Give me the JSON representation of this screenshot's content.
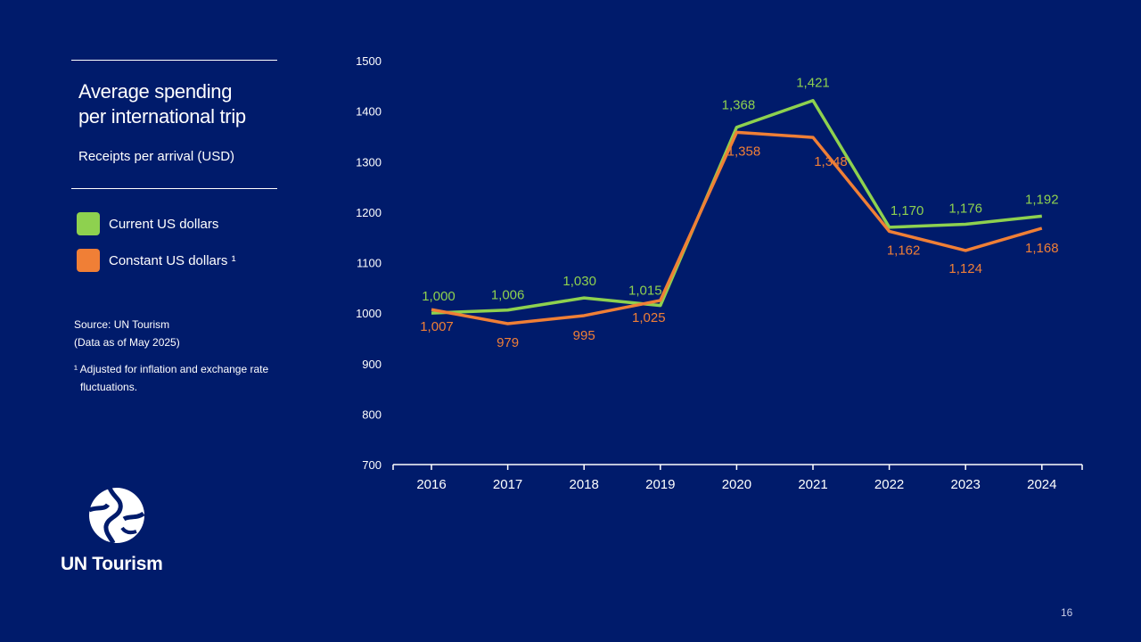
{
  "header": {
    "title_line1": "Average spending",
    "title_line2": "per international trip",
    "subtitle": "Receipts per arrival (USD)"
  },
  "legend": [
    {
      "label": "Current US dollars",
      "color": "#8ed14f"
    },
    {
      "label": "Constant US dollars ¹",
      "color": "#f07f36"
    }
  ],
  "source": {
    "line1": "Source: UN Tourism",
    "line2": "(Data as of May 2025)"
  },
  "footnote": {
    "line1": "¹ Adjusted for inflation and exchange rate",
    "line2": "fluctuations."
  },
  "logo": {
    "name": "UN Tourism"
  },
  "page_number": "16",
  "chart_data": {
    "type": "line",
    "title": "Average spending per international trip",
    "ylabel": "Receipts per arrival (USD)",
    "xlabel": "",
    "categories": [
      "2016",
      "2017",
      "2018",
      "2019",
      "2020",
      "2021",
      "2022",
      "2023",
      "2024"
    ],
    "ylim": [
      700,
      1500
    ],
    "yticks": [
      700,
      800,
      900,
      1000,
      1100,
      1200,
      1300,
      1400,
      1500
    ],
    "series": [
      {
        "name": "Current US dollars",
        "color": "#8ed14f",
        "values": [
          1000,
          1006,
          1030,
          1015,
          1368,
          1421,
          1170,
          1176,
          1192
        ],
        "labels": [
          "1,000",
          "1,006",
          "1,030",
          "1,015",
          "1,368",
          "1,421",
          "1,170",
          "1,176",
          "1,192"
        ]
      },
      {
        "name": "Constant US dollars ¹",
        "color": "#f07f36",
        "values": [
          1007,
          979,
          995,
          1025,
          1358,
          1348,
          1162,
          1124,
          1168
        ],
        "labels": [
          "1,007",
          "979",
          "995",
          "1,025",
          "1,358",
          "1,348",
          "1,162",
          "1,124",
          "1,168"
        ]
      }
    ]
  }
}
